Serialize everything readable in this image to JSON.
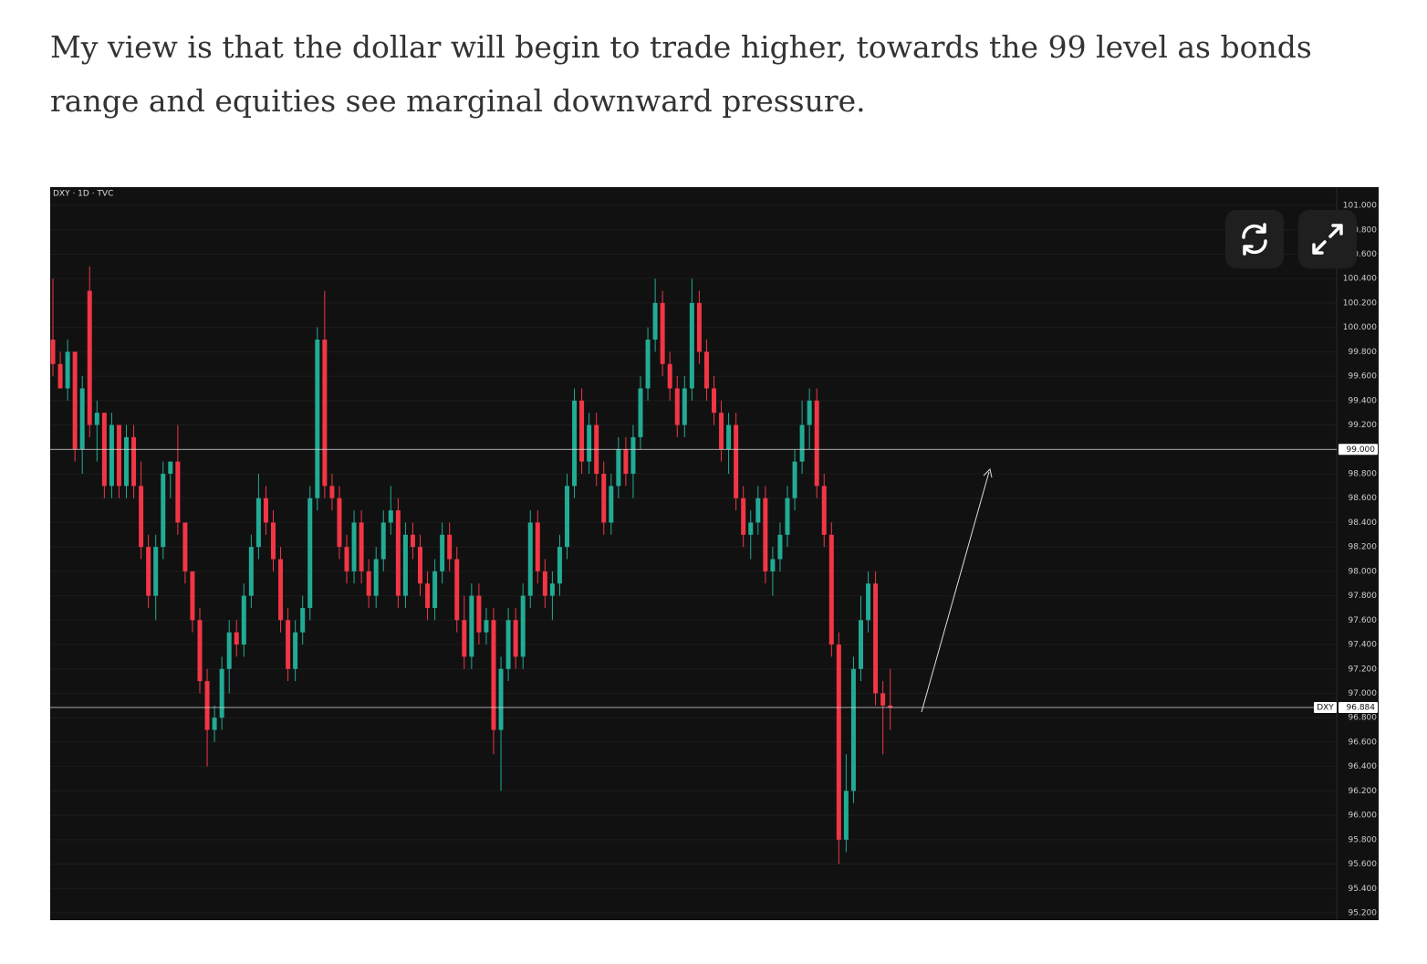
{
  "paragraph": "My view is that the dollar will begin to trade higher, towards the 99 level as bonds range and equities see marginal downward pressure.",
  "chart_data": {
    "type": "candlestick",
    "title": "DXY · 1D · TVC",
    "up_color": "#22ab94",
    "down_color": "#f23645",
    "ylim": [
      95.14,
      101.15
    ],
    "yticks": [
      {
        "value": 95.2,
        "label": "95.200"
      },
      {
        "value": 95.4,
        "label": "95.400"
      },
      {
        "value": 95.6,
        "label": "95.600"
      },
      {
        "value": 95.8,
        "label": "95.800"
      },
      {
        "value": 96.0,
        "label": "96.000"
      },
      {
        "value": 96.2,
        "label": "96.200"
      },
      {
        "value": 96.4,
        "label": "96.400"
      },
      {
        "value": 96.6,
        "label": "96.600"
      },
      {
        "value": 96.8,
        "label": "96.800"
      },
      {
        "value": 97.0,
        "label": "97.000"
      },
      {
        "value": 97.2,
        "label": "97.200"
      },
      {
        "value": 97.4,
        "label": "97.400"
      },
      {
        "value": 97.6,
        "label": "97.600"
      },
      {
        "value": 97.8,
        "label": "97.800"
      },
      {
        "value": 98.0,
        "label": "98.000"
      },
      {
        "value": 98.2,
        "label": "98.200"
      },
      {
        "value": 98.4,
        "label": "98.400"
      },
      {
        "value": 98.6,
        "label": "98.600"
      },
      {
        "value": 98.8,
        "label": "98.800"
      },
      {
        "value": 99.2,
        "label": "99.200"
      },
      {
        "value": 99.4,
        "label": "99.400"
      },
      {
        "value": 99.6,
        "label": "99.600"
      },
      {
        "value": 99.8,
        "label": "99.800"
      },
      {
        "value": 100.0,
        "label": "100.000"
      },
      {
        "value": 100.2,
        "label": "100.200"
      },
      {
        "value": 100.4,
        "label": "100.400"
      },
      {
        "value": 100.6,
        "label": "100.600"
      },
      {
        "value": 100.8,
        "label": "100.800"
      },
      {
        "value": 101.0,
        "label": "101.000"
      }
    ],
    "hlines": [
      {
        "value": 99.0,
        "label": "99.000"
      },
      {
        "value": 96.884,
        "label": "96.884",
        "name": "DXY"
      }
    ],
    "open": [
      99.9,
      99.7,
      99.5,
      99.8,
      99.0,
      100.3,
      99.2,
      99.3,
      98.7,
      99.2,
      98.7,
      99.1,
      98.7,
      98.2,
      97.8,
      98.2,
      98.8,
      98.9,
      98.4,
      98.0,
      97.6,
      97.1,
      96.7,
      96.8,
      97.2,
      97.5,
      97.4,
      97.8,
      98.2,
      98.6,
      98.4,
      98.1,
      97.6,
      97.2,
      97.5,
      97.7,
      98.6,
      99.9,
      98.7,
      98.6,
      98.2,
      98.0,
      98.4,
      98.0,
      97.8,
      98.1,
      98.4,
      98.5,
      97.8,
      98.3,
      98.2,
      97.9,
      97.7,
      98.0,
      98.3,
      98.1,
      97.6,
      97.3,
      97.8,
      97.5,
      97.6,
      96.7,
      97.2,
      97.6,
      97.3,
      97.8,
      98.4,
      98.0,
      97.8,
      97.9,
      98.2,
      98.7,
      99.4,
      98.9,
      99.2,
      98.8,
      98.4,
      98.7,
      99.0,
      98.8,
      99.1,
      99.5,
      99.9,
      100.2,
      99.7,
      99.5,
      99.2,
      99.5,
      100.2,
      99.8,
      99.5,
      99.3,
      99.0,
      99.2,
      98.6,
      98.3,
      98.4,
      98.6,
      98.0,
      98.1,
      98.3,
      98.6,
      98.9,
      99.2,
      99.4,
      98.7,
      98.3,
      97.4,
      95.8,
      96.2,
      97.2,
      97.6,
      97.9,
      97.0,
      96.9
    ],
    "high": [
      100.4,
      99.8,
      99.9,
      99.8,
      99.6,
      100.5,
      99.4,
      99.3,
      99.3,
      99.2,
      99.2,
      99.2,
      98.9,
      98.3,
      98.3,
      98.9,
      98.9,
      99.2,
      98.4,
      98.0,
      97.7,
      97.2,
      96.9,
      97.3,
      97.6,
      97.6,
      97.9,
      98.3,
      98.8,
      98.7,
      98.5,
      98.2,
      97.7,
      97.6,
      97.8,
      98.7,
      100.0,
      100.3,
      98.8,
      98.7,
      98.3,
      98.5,
      98.5,
      98.1,
      98.2,
      98.5,
      98.7,
      98.6,
      98.4,
      98.4,
      98.3,
      98.0,
      98.1,
      98.4,
      98.4,
      98.2,
      97.8,
      97.9,
      97.9,
      97.7,
      97.7,
      97.3,
      97.7,
      97.7,
      97.9,
      98.5,
      98.5,
      98.1,
      98.0,
      98.3,
      98.8,
      99.5,
      99.5,
      99.3,
      99.3,
      98.9,
      98.8,
      99.1,
      99.1,
      99.2,
      99.6,
      100.0,
      100.4,
      100.3,
      99.8,
      99.6,
      99.6,
      100.4,
      100.3,
      99.9,
      99.6,
      99.4,
      99.3,
      99.3,
      98.7,
      98.5,
      98.7,
      98.7,
      98.2,
      98.4,
      98.7,
      99.0,
      99.4,
      99.5,
      99.5,
      98.8,
      98.4,
      97.5,
      96.5,
      97.3,
      97.8,
      98.0,
      98.0,
      97.1,
      97.2
    ],
    "low": [
      99.6,
      99.5,
      99.4,
      98.9,
      98.8,
      99.1,
      98.9,
      98.6,
      98.6,
      98.6,
      98.6,
      98.6,
      98.1,
      97.7,
      97.6,
      98.1,
      98.6,
      98.3,
      97.9,
      97.5,
      97.0,
      96.4,
      96.6,
      96.7,
      97.0,
      97.3,
      97.3,
      97.7,
      98.1,
      98.3,
      98.0,
      97.5,
      97.1,
      97.1,
      97.4,
      97.6,
      98.5,
      98.6,
      98.5,
      98.1,
      97.9,
      97.9,
      97.9,
      97.7,
      97.7,
      98.0,
      98.3,
      97.7,
      97.7,
      98.1,
      97.8,
      97.6,
      97.6,
      97.9,
      98.0,
      97.5,
      97.2,
      97.2,
      97.4,
      97.4,
      96.5,
      96.2,
      97.1,
      97.2,
      97.2,
      97.7,
      97.9,
      97.7,
      97.6,
      97.8,
      98.1,
      98.6,
      98.8,
      98.8,
      98.7,
      98.3,
      98.3,
      98.6,
      98.7,
      98.6,
      99.0,
      99.4,
      99.8,
      99.6,
      99.4,
      99.1,
      99.1,
      99.4,
      99.7,
      99.4,
      99.2,
      98.9,
      98.8,
      98.5,
      98.2,
      98.1,
      98.3,
      97.9,
      97.8,
      98.0,
      98.2,
      98.5,
      98.8,
      99.0,
      98.6,
      98.2,
      97.3,
      95.6,
      95.7,
      96.1,
      97.1,
      97.5,
      96.9,
      96.5,
      96.7
    ],
    "close": [
      99.7,
      99.5,
      99.8,
      99.0,
      99.5,
      99.2,
      99.3,
      98.7,
      99.2,
      98.7,
      99.1,
      98.7,
      98.2,
      97.8,
      98.2,
      98.8,
      98.9,
      98.4,
      98.0,
      97.6,
      97.1,
      96.7,
      96.8,
      97.2,
      97.5,
      97.4,
      97.8,
      98.2,
      98.6,
      98.4,
      98.1,
      97.6,
      97.2,
      97.5,
      97.7,
      98.6,
      99.9,
      98.7,
      98.6,
      98.2,
      98.0,
      98.4,
      98.0,
      97.8,
      98.1,
      98.4,
      98.5,
      97.8,
      98.3,
      98.2,
      97.9,
      97.7,
      98.0,
      98.3,
      98.1,
      97.6,
      97.3,
      97.8,
      97.5,
      97.6,
      96.7,
      97.2,
      97.6,
      97.3,
      97.8,
      98.4,
      98.0,
      97.8,
      97.9,
      98.2,
      98.7,
      99.4,
      98.9,
      99.2,
      98.8,
      98.4,
      98.7,
      99.0,
      98.8,
      99.1,
      99.5,
      99.9,
      100.2,
      99.7,
      99.5,
      99.2,
      99.5,
      100.2,
      99.8,
      99.5,
      99.3,
      99.0,
      99.2,
      98.6,
      98.3,
      98.4,
      98.6,
      98.0,
      98.1,
      98.3,
      98.6,
      98.9,
      99.2,
      99.4,
      98.7,
      98.3,
      97.4,
      95.8,
      96.2,
      97.2,
      97.6,
      97.9,
      97.0,
      96.9,
      96.884
    ]
  }
}
